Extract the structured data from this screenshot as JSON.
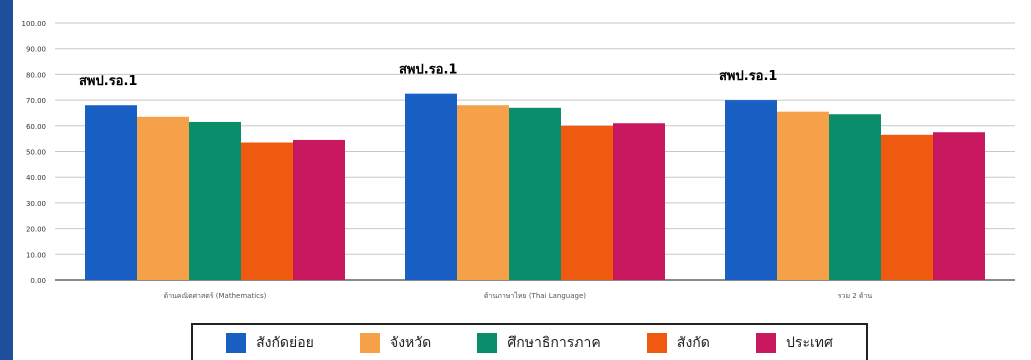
{
  "chart_data": {
    "type": "bar",
    "title": "",
    "xlabel": "",
    "ylabel": "",
    "ylim": [
      0,
      100
    ],
    "yticks": [
      "0.00",
      "10.00",
      "20.00",
      "30.00",
      "40.00",
      "50.00",
      "60.00",
      "70.00",
      "80.00",
      "90.00",
      "100.00"
    ],
    "categories": [
      "ด้านคณิตศาสตร์ (Mathematics)",
      "ด้านภาษาไทย (Thai Language)",
      "รวม 2 ด้าน"
    ],
    "series": [
      {
        "name": "สังกัดย่อย",
        "color": "#1a5fc4",
        "values": [
          68.0,
          72.5,
          70.0
        ]
      },
      {
        "name": "จังหวัด",
        "color": "#f6a04a",
        "values": [
          63.5,
          68.0,
          65.5
        ]
      },
      {
        "name": "ศึกษาธิการภาค",
        "color": "#0a8d6a",
        "values": [
          61.5,
          67.0,
          64.5
        ]
      },
      {
        "name": "สังกัด",
        "color": "#ef5a10",
        "values": [
          53.5,
          60.0,
          56.5
        ]
      },
      {
        "name": "ประเทศ",
        "color": "#c8185f",
        "values": [
          54.5,
          61.0,
          57.5
        ]
      }
    ],
    "annotations": [
      "สพป.รอ.1",
      "สพป.รอ.1",
      "สพป.รอ.1"
    ],
    "grid": true,
    "legend_position": "bottom"
  }
}
